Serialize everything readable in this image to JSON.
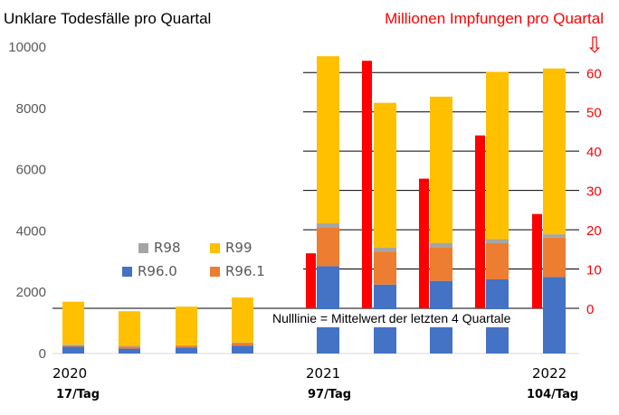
{
  "chart_data": {
    "type": "bar",
    "title_left": "Unklare Todesfälle pro Quartal",
    "title_right": "Millionen Impfungen pro Quartal",
    "arrow_glyph": "⇩",
    "left_axis": {
      "ticks": [
        "0",
        "2000",
        "4000",
        "6000",
        "8000",
        "10000"
      ],
      "ylim": [
        0,
        10000
      ]
    },
    "right_axis": {
      "ticks": [
        "0",
        "10",
        "20",
        "30",
        "40",
        "50",
        "60"
      ],
      "ylim": [
        -11.5,
        66.5
      ],
      "color": "#ff0000"
    },
    "x_labels": [
      {
        "year": "2020",
        "rate": "17/Tag"
      },
      {
        "year": "2021",
        "rate": "97/Tag"
      },
      {
        "year": "2022",
        "rate": "104/Tag"
      }
    ],
    "note": "Nulllinie = Mittelwert der letzten 4 Quartale",
    "legend": [
      {
        "name": "R98",
        "color": "#a5a5a5"
      },
      {
        "name": "R99",
        "color": "#ffc000"
      },
      {
        "name": "R96.0",
        "color": "#4472c4"
      },
      {
        "name": "R96.1",
        "color": "#ed7d31"
      }
    ],
    "stack_order": [
      "R96.0",
      "R96.1",
      "R98",
      "R99"
    ],
    "categories": [
      "Q1 2020",
      "Q2 2020",
      "Q3 2020",
      "Q4 2020",
      "Q1 2021",
      "Q2 2021",
      "Q3 2021",
      "Q4 2021",
      "Q1 2022"
    ],
    "series": [
      {
        "name": "R96.0",
        "values": [
          230,
          160,
          200,
          260,
          2850,
          2250,
          2370,
          2420,
          2500
        ]
      },
      {
        "name": "R96.1",
        "values": [
          40,
          70,
          50,
          80,
          1250,
          1080,
          1100,
          1180,
          1280
        ]
      },
      {
        "name": "R98",
        "values": [
          20,
          20,
          20,
          20,
          150,
          120,
          140,
          130,
          110
        ]
      },
      {
        "name": "R99",
        "values": [
          1400,
          1130,
          1260,
          1470,
          5450,
          4730,
          4770,
          5460,
          5410
        ]
      }
    ],
    "vaccinations": {
      "unit": "Millionen",
      "values": [
        null,
        null,
        null,
        null,
        14,
        63,
        33,
        44,
        24
      ],
      "color": "#ff0000"
    },
    "horizontal_lines_right": [
      0,
      10,
      20,
      30,
      40,
      50,
      60
    ]
  }
}
